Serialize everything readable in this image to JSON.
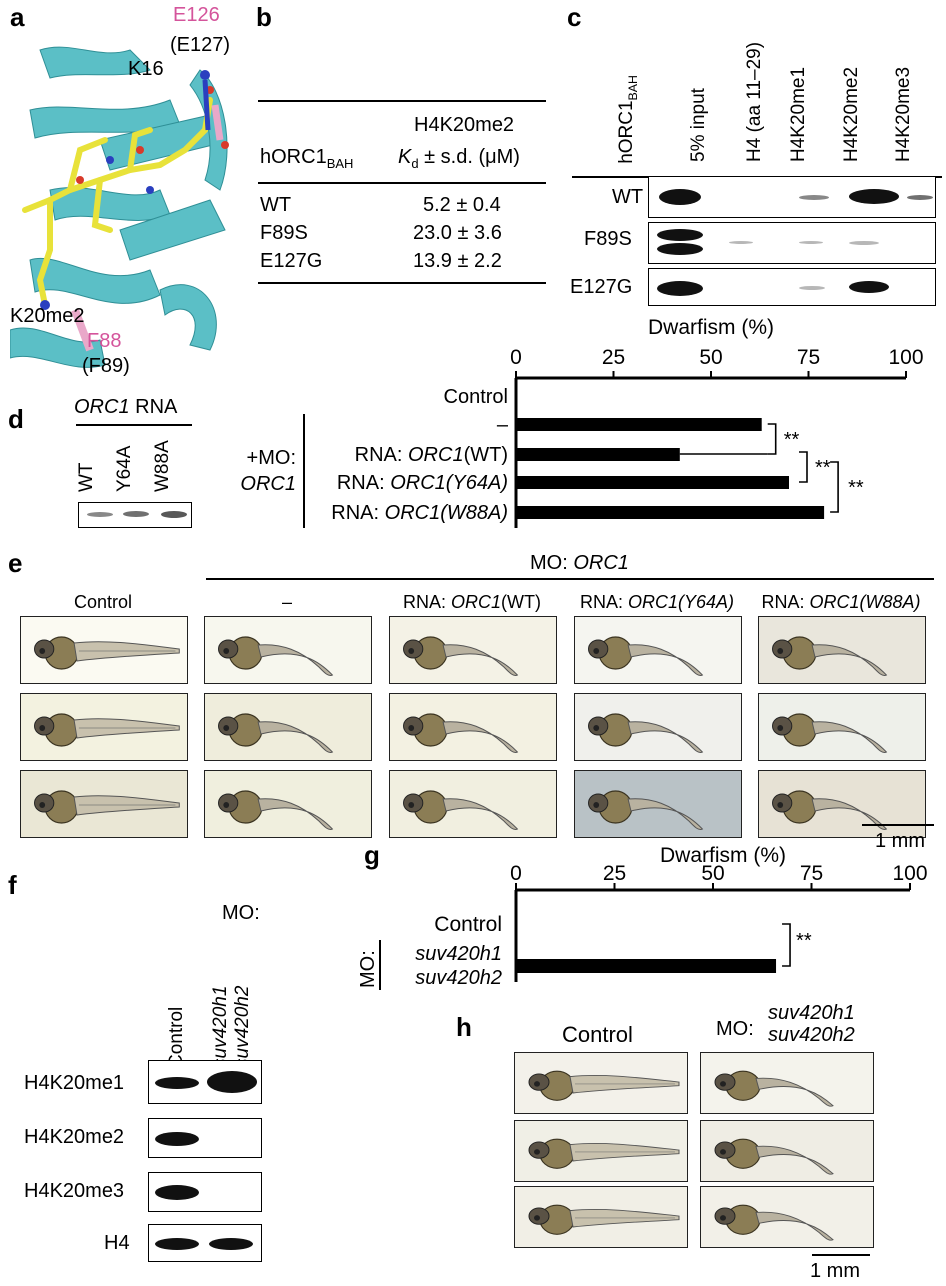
{
  "panels": {
    "a": "a",
    "b": "b",
    "c": "c",
    "d": "d",
    "e": "e",
    "f": "f",
    "g": "g",
    "h": "h"
  },
  "a": {
    "labels": {
      "e126": "E126",
      "e127": "(E127)",
      "k16": "K16",
      "k20me2": "K20me2",
      "f88": "F88",
      "f89": "(F89)"
    }
  },
  "b": {
    "col_header_1": "H4K20me2",
    "row_header": "hORC1",
    "row_header_sub": "BAH",
    "col_header_2_k": "K",
    "col_header_2_d": "d",
    "col_header_2_rest": " ± s.d. (μM)",
    "rows": [
      {
        "name": "WT",
        "value": "5.2 ± 0.4"
      },
      {
        "name": "F89S",
        "value": "23.0 ± 3.6"
      },
      {
        "name": "E127G",
        "value": "13.9 ± 2.2"
      }
    ]
  },
  "c": {
    "side_label": "hORC1",
    "side_label_sub": "BAH",
    "columns": [
      "5% input",
      "H4 (aa 11–29)",
      "H4K20me1",
      "H4K20me2",
      "H4K20me3"
    ],
    "rows": [
      "WT",
      "F89S",
      "E127G"
    ]
  },
  "d": {
    "header_italic": "ORC1",
    "header_rest": " RNA",
    "lanes": [
      "WT",
      "Y64A",
      "W88A"
    ]
  },
  "chart_top": {
    "xlabel": "Dwarfism (%)",
    "ticks": [
      "0",
      "25",
      "50",
      "75",
      "100"
    ],
    "group_label_1": "+MO:",
    "group_label_2": "ORC1",
    "rows": [
      {
        "label": "Control"
      },
      {
        "label": "–"
      },
      {
        "label_pre": "RNA: ",
        "label_it": "ORC1",
        "label_post": "(WT)"
      },
      {
        "label_pre": "RNA: ",
        "label_it": "ORC1(Y64A)",
        "label_post": ""
      },
      {
        "label_pre": "RNA: ",
        "label_it": "ORC1(W88A)",
        "label_post": ""
      }
    ],
    "sig": [
      "**",
      "**",
      "**"
    ]
  },
  "e": {
    "mo_pre": "MO: ",
    "mo_it": "ORC1",
    "columns": [
      {
        "pre": "Control",
        "it": "",
        "post": ""
      },
      {
        "pre": "–",
        "it": "",
        "post": ""
      },
      {
        "pre": "RNA: ",
        "it": "ORC1",
        "post": "(WT)"
      },
      {
        "pre": "RNA: ",
        "it": "ORC1(Y64A)",
        "post": ""
      },
      {
        "pre": "RNA: ",
        "it": "ORC1(W88A)",
        "post": ""
      }
    ],
    "scale": "1 mm"
  },
  "f": {
    "mo": "MO:",
    "lanes": [
      "Control",
      "suv420h1",
      "suv420h2"
    ],
    "rows": [
      "H4K20me1",
      "H4K20me2",
      "H4K20me3",
      "H4"
    ]
  },
  "chart_bottom": {
    "xlabel": "Dwarfism (%)",
    "ticks": [
      "0",
      "25",
      "50",
      "75",
      "100"
    ],
    "mo": "MO:",
    "rows": [
      {
        "label": "Control"
      },
      {
        "label_1": "suv420h1",
        "label_2": "suv420h2"
      }
    ],
    "sig": "**"
  },
  "h": {
    "control": "Control",
    "mo": "MO:",
    "mo_1": "suv420h1",
    "mo_2": "suv420h2",
    "scale": "1 mm"
  },
  "chart_data": [
    {
      "type": "bar",
      "orientation": "horizontal",
      "xlabel": "Dwarfism (%)",
      "xlim": [
        0,
        100
      ],
      "categories": [
        "Control",
        "–",
        "RNA: ORC1(WT)",
        "RNA: ORC1(Y64A)",
        "RNA: ORC1(W88A)"
      ],
      "values": [
        0,
        63,
        42,
        70,
        79
      ]
    },
    {
      "type": "bar",
      "orientation": "horizontal",
      "xlabel": "Dwarfism (%)",
      "xlim": [
        0,
        100
      ],
      "categories": [
        "Control",
        "suv420h1 suv420h2"
      ],
      "values": [
        0,
        66
      ]
    }
  ],
  "colors": {
    "cyan": "#5bbfc6",
    "yellow": "#e8e23a",
    "pink": "#d4549b",
    "blue": "#2a3fbf",
    "red": "#d83a2a"
  }
}
